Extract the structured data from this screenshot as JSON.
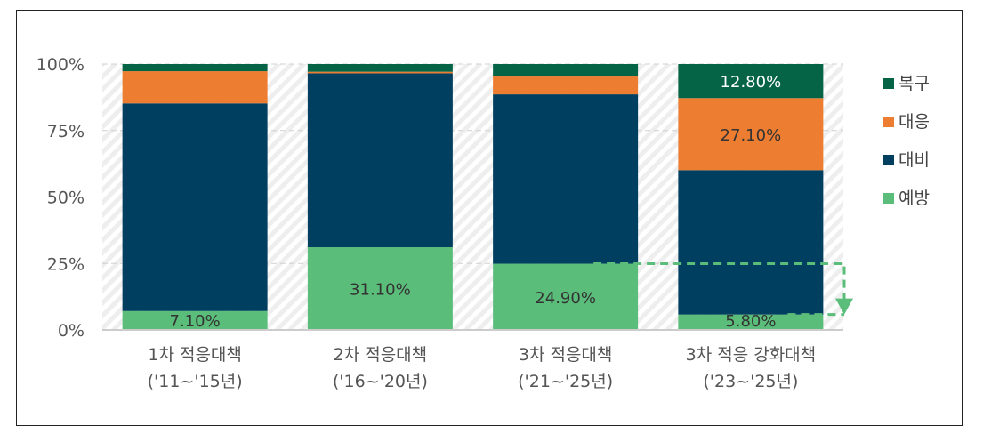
{
  "chart_data": {
    "type": "bar",
    "stacked": true,
    "categories": [
      [
        "1차 적응대책",
        "('11~'15년)"
      ],
      [
        "2차 적응대책",
        "('16~'20년)"
      ],
      [
        "3차 적응대책",
        "('21~'25년)"
      ],
      [
        "3차 적응 강화대책",
        "('23~'25년)"
      ]
    ],
    "series": [
      {
        "name": "예방",
        "color": "#5bbd7a",
        "values": [
          7.1,
          31.1,
          24.9,
          5.8
        ],
        "labels": [
          "7.10%",
          "31.10%",
          "24.90%",
          "5.80%"
        ],
        "label_color": "#333333"
      },
      {
        "name": "대비",
        "color": "#003f5f",
        "values": [
          78.1,
          65.4,
          63.7,
          54.3
        ],
        "labels": [
          "",
          "",
          "",
          ""
        ]
      },
      {
        "name": "대응",
        "color": "#ed7d31",
        "values": [
          12.1,
          0.6,
          6.7,
          27.1
        ],
        "labels": [
          "",
          "",
          "",
          "27.10%"
        ],
        "label_color": "#333333"
      },
      {
        "name": "복구",
        "color": "#056346",
        "values": [
          2.7,
          2.9,
          4.7,
          12.8
        ],
        "labels": [
          "",
          "",
          "",
          "12.80%"
        ],
        "label_color": "#ffffff"
      }
    ],
    "y_ticks": [
      "0%",
      "25%",
      "50%",
      "75%",
      "100%"
    ],
    "ylim": [
      0,
      100
    ],
    "legend_placement": "right",
    "annotation": {
      "type": "dashed arrow",
      "from_value": 24.9,
      "to_value": 5.8,
      "color": "#5bbd7a"
    }
  }
}
